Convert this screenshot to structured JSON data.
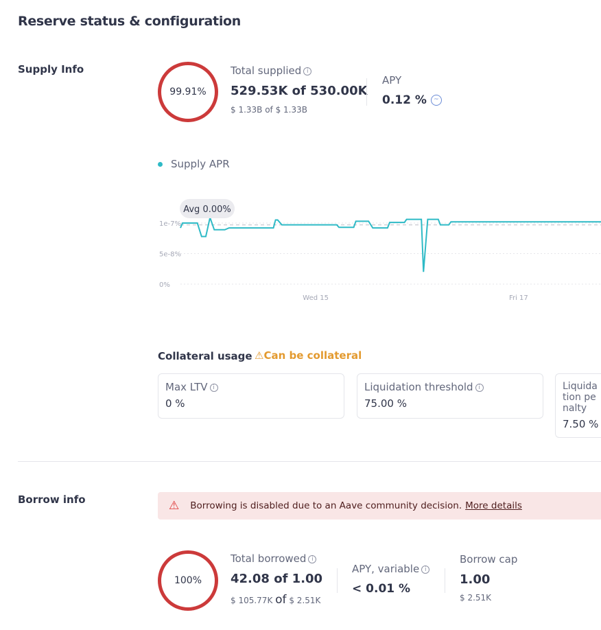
{
  "page_title": "Reserve status & configuration",
  "supply": {
    "section_label": "Supply Info",
    "utilization": "99.91%",
    "total_label": "Total supplied",
    "total_value": "529.53K of 530.00K",
    "total_usd": "$ 1.33B of $ 1.33B",
    "apy_label": "APY",
    "apy_value": "0.12 %",
    "legend": "Supply APR",
    "collateral_label": "Collateral usage",
    "collateral_status": "Can be collateral",
    "cards": [
      {
        "label": "Max LTV",
        "value": "0 %"
      },
      {
        "label": "Liquidation threshold",
        "value": "75.00 %"
      },
      {
        "label": "Liquidation penalty",
        "value": "7.50 %"
      }
    ]
  },
  "chart_data": {
    "type": "line",
    "series": [
      {
        "name": "Supply APR",
        "color": "#2ebac6",
        "points": [
          [
            "13 16:00",
            9.2e-08
          ],
          [
            "13 16:30",
            1e-07
          ],
          [
            "13 20:00",
            1e-07
          ],
          [
            "13 21:00",
            7.8e-08
          ],
          [
            "13 22:00",
            7.8e-08
          ],
          [
            "13 23:00",
            1.09e-07
          ],
          [
            "14 00:00",
            8.9e-08
          ],
          [
            "14 02:30",
            8.9e-08
          ],
          [
            "14 03:30",
            9.2e-08
          ],
          [
            "14 14:00",
            9.2e-08
          ],
          [
            "14 14:30",
            1.05e-07
          ],
          [
            "14 15:00",
            1.05e-07
          ],
          [
            "14 16:00",
            9.7e-08
          ],
          [
            "15 05:00",
            9.7e-08
          ],
          [
            "15 05:30",
            9.3e-08
          ],
          [
            "15 09:00",
            9.3e-08
          ],
          [
            "15 09:30",
            1.03e-07
          ],
          [
            "15 12:30",
            1.03e-07
          ],
          [
            "15 13:30",
            9.2e-08
          ],
          [
            "15 17:00",
            9.2e-08
          ],
          [
            "15 17:30",
            1.01e-07
          ],
          [
            "15 21:00",
            1.01e-07
          ],
          [
            "15 21:30",
            1.06e-07
          ],
          [
            "16 01:00",
            1.06e-07
          ],
          [
            "16 01:30",
            2e-08
          ],
          [
            "16 02:30",
            1.06e-07
          ],
          [
            "16 05:00",
            1.06e-07
          ],
          [
            "16 05:30",
            9.7e-08
          ],
          [
            "16 07:30",
            9.7e-08
          ],
          [
            "16 08:00",
            1.02e-07
          ],
          [
            "17 19:30",
            1.02e-07
          ]
        ]
      }
    ],
    "average": {
      "label": "Avg 0.00%",
      "value": 9.7e-08
    },
    "yticks": [
      {
        "label": "0%",
        "value": 0
      },
      {
        "label": "5e-8%",
        "value": 5e-08
      },
      {
        "label": "1e-7%",
        "value": 1e-07
      }
    ],
    "xticks": [
      {
        "label": "Wed 15",
        "value": "15 00:00"
      },
      {
        "label": "Fri 17",
        "value": "17 00:00"
      }
    ],
    "ylim": [
      0,
      1e-07
    ],
    "grid": true
  },
  "borrow": {
    "section_label": "Borrow info",
    "alert_text": "Borrowing is disabled due to an Aave community decision.",
    "alert_link": "More details",
    "utilization": "100%",
    "total_label": "Total borrowed",
    "total_value": "42.08 of 1.00",
    "total_usd_a": "$ 105.77K",
    "total_usd_of": "of",
    "total_usd_b": "$ 2.51K",
    "apy_label": "APY, variable",
    "apy_value": "< 0.01 %",
    "cap_label": "Borrow cap",
    "cap_value": "1.00",
    "cap_usd": "$ 2.51K"
  }
}
